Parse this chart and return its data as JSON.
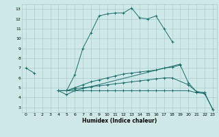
{
  "xlabel": "Humidex (Indice chaleur)",
  "bg_color": "#cfe8e8",
  "grid_color": "#aacccc",
  "line_color": "#1a6b6b",
  "xlim": [
    -0.5,
    23.5
  ],
  "ylim": [
    2.5,
    13.5
  ],
  "xticks": [
    0,
    1,
    2,
    3,
    4,
    5,
    6,
    7,
    8,
    9,
    10,
    11,
    12,
    13,
    14,
    15,
    16,
    17,
    18,
    19,
    20,
    21,
    22,
    23
  ],
  "yticks": [
    3,
    4,
    5,
    6,
    7,
    8,
    9,
    10,
    11,
    12,
    13
  ],
  "lines": [
    {
      "x": [
        0,
        1,
        2,
        3,
        4,
        5,
        6,
        7,
        8,
        9,
        10,
        11,
        12,
        13,
        14,
        15,
        16,
        17,
        18,
        19
      ],
      "y": [
        7.0,
        6.5,
        null,
        null,
        4.7,
        4.7,
        6.3,
        9.0,
        10.6,
        12.3,
        12.5,
        12.6,
        12.6,
        13.1,
        12.1,
        12.0,
        12.3,
        11.0,
        9.7,
        null
      ]
    },
    {
      "x": [
        4,
        5,
        6,
        19
      ],
      "y": [
        4.7,
        4.3,
        4.7,
        7.4
      ]
    },
    {
      "x": [
        4,
        5,
        6,
        7,
        8,
        9,
        10,
        11,
        12,
        13,
        14,
        15,
        16,
        17,
        18,
        19,
        20,
        21,
        22
      ],
      "y": [
        4.7,
        4.7,
        5.0,
        5.3,
        5.6,
        5.8,
        6.0,
        6.2,
        6.4,
        6.5,
        6.6,
        6.7,
        6.8,
        7.0,
        7.1,
        7.3,
        5.5,
        4.6,
        4.5
      ]
    },
    {
      "x": [
        4,
        5,
        6,
        7,
        8,
        9,
        10,
        11,
        12,
        13,
        14,
        15,
        16,
        17,
        18,
        20,
        21,
        22,
        23
      ],
      "y": [
        4.7,
        4.7,
        4.9,
        5.0,
        5.1,
        5.2,
        5.3,
        5.4,
        5.5,
        5.6,
        5.7,
        5.8,
        5.9,
        6.0,
        6.0,
        5.3,
        4.6,
        4.5,
        2.8
      ]
    },
    {
      "x": [
        4,
        5,
        6,
        7,
        8,
        9,
        10,
        11,
        12,
        13,
        14,
        15,
        16,
        17,
        18,
        20,
        21,
        22,
        23
      ],
      "y": [
        4.7,
        4.7,
        4.7,
        4.7,
        4.7,
        4.7,
        4.7,
        4.7,
        4.7,
        4.7,
        4.7,
        4.7,
        4.7,
        4.7,
        4.7,
        4.7,
        4.5,
        4.4,
        2.8
      ]
    }
  ]
}
